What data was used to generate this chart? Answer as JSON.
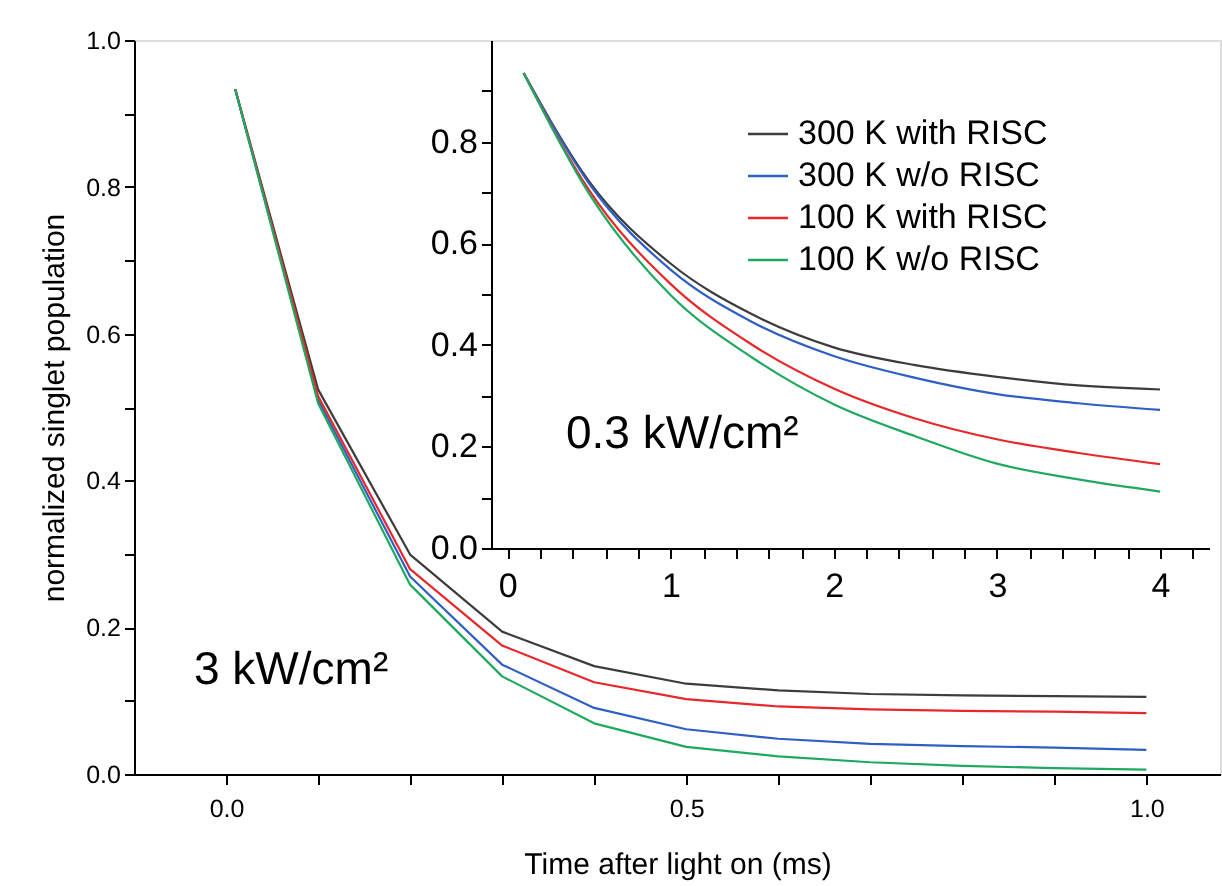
{
  "chart_data": [
    {
      "type": "line",
      "xlabel": "Time after light on (ms)",
      "ylabel": "normalized singlet population",
      "x": [
        0.01,
        0.1,
        0.2,
        0.3,
        0.4,
        0.5,
        0.6,
        0.7,
        0.8,
        0.9,
        1.0
      ],
      "series": [
        {
          "color": "#3c3c3c",
          "values": [
            0.933,
            0.524,
            0.299,
            0.194,
            0.147,
            0.123,
            0.114,
            0.109,
            0.107,
            0.106,
            0.105
          ]
        },
        {
          "color": "#2f5fc4",
          "values": [
            0.933,
            0.51,
            0.269,
            0.149,
            0.09,
            0.061,
            0.048,
            0.041,
            0.038,
            0.036,
            0.033
          ]
        },
        {
          "color": "#e8272a",
          "values": [
            0.933,
            0.515,
            0.279,
            0.175,
            0.125,
            0.102,
            0.092,
            0.088,
            0.086,
            0.085,
            0.083
          ]
        },
        {
          "color": "#1fa860",
          "values": [
            0.933,
            0.505,
            0.258,
            0.133,
            0.069,
            0.037,
            0.024,
            0.016,
            0.011,
            0.008,
            0.006
          ]
        }
      ],
      "xlim": [
        -0.1,
        1.08
      ],
      "ylim": [
        0,
        1.0
      ],
      "xticks": [
        {
          "value": 0,
          "label": "0.0"
        },
        {
          "value": 0.1,
          "label": null
        },
        {
          "value": 0.2,
          "label": null
        },
        {
          "value": 0.3,
          "label": null
        },
        {
          "value": 0.4,
          "label": null
        },
        0.5,
        {
          "value": 0.6,
          "label": null
        },
        {
          "value": 0.7,
          "label": null
        },
        {
          "value": 0.8,
          "label": null
        },
        {
          "value": 0.9,
          "label": null
        },
        {
          "value": 1.0,
          "label": "1.0"
        }
      ],
      "yticks": [
        {
          "value": 0,
          "label": "0.0"
        },
        {
          "value": 0.1,
          "label": null
        },
        0.2,
        {
          "value": 0.3,
          "label": null
        },
        0.4,
        {
          "value": 0.5,
          "label": null
        },
        0.6,
        {
          "value": 0.7,
          "label": null
        },
        0.8,
        {
          "value": 0.9,
          "label": null
        },
        {
          "value": 1.0,
          "label": "1.0"
        }
      ],
      "annotations": [
        "3 kW/cm²"
      ]
    },
    {
      "type": "line",
      "x": [
        0.1,
        0.5,
        1,
        1.5,
        2,
        2.5,
        3,
        3.5,
        4
      ],
      "series": [
        {
          "name": "300 K with RISC",
          "color": "#3c3c3c",
          "values": [
            0.935,
            0.722,
            0.56,
            0.46,
            0.395,
            0.36,
            0.337,
            0.32,
            0.312
          ]
        },
        {
          "name": "300 K w/o  RISC",
          "color": "#2f5fc4",
          "values": [
            0.935,
            0.718,
            0.548,
            0.445,
            0.378,
            0.335,
            0.303,
            0.285,
            0.272
          ]
        },
        {
          "name": "100 K with RISC",
          "color": "#e8272a",
          "values": [
            0.935,
            0.705,
            0.52,
            0.4,
            0.314,
            0.255,
            0.214,
            0.187,
            0.165
          ]
        },
        {
          "name": "100 K w/o  RISC",
          "color": "#1fa860",
          "values": [
            0.935,
            0.698,
            0.498,
            0.375,
            0.283,
            0.22,
            0.166,
            0.135,
            0.111
          ]
        }
      ],
      "xlim": [
        -0.1,
        4.3
      ],
      "ylim": [
        0,
        1.0
      ],
      "xticks": [
        0,
        {
          "value": 0.2,
          "label": null
        },
        {
          "value": 0.4,
          "label": null
        },
        {
          "value": 0.6,
          "label": null
        },
        {
          "value": 0.8,
          "label": null
        },
        1,
        {
          "value": 1.2,
          "label": null
        },
        {
          "value": 1.4,
          "label": null
        },
        {
          "value": 1.6,
          "label": null
        },
        {
          "value": 1.8,
          "label": null
        },
        2,
        {
          "value": 2.2,
          "label": null
        },
        {
          "value": 2.4,
          "label": null
        },
        {
          "value": 2.6,
          "label": null
        },
        {
          "value": 2.8,
          "label": null
        },
        3,
        {
          "value": 3.2,
          "label": null
        },
        {
          "value": 3.4,
          "label": null
        },
        {
          "value": 3.6,
          "label": null
        },
        {
          "value": 3.8,
          "label": null
        },
        4,
        {
          "value": 4.2,
          "label": null
        }
      ],
      "yticks": [
        {
          "value": 0,
          "label": "0.0"
        },
        {
          "value": 0.1,
          "label": null
        },
        0.2,
        {
          "value": 0.3,
          "label": null
        },
        0.4,
        {
          "value": 0.5,
          "label": null
        },
        0.6,
        {
          "value": 0.7,
          "label": null
        },
        0.8,
        {
          "value": 0.9,
          "label": null
        }
      ],
      "annotations": [
        "0.3 kW/cm²"
      ],
      "legend": "top right"
    }
  ]
}
